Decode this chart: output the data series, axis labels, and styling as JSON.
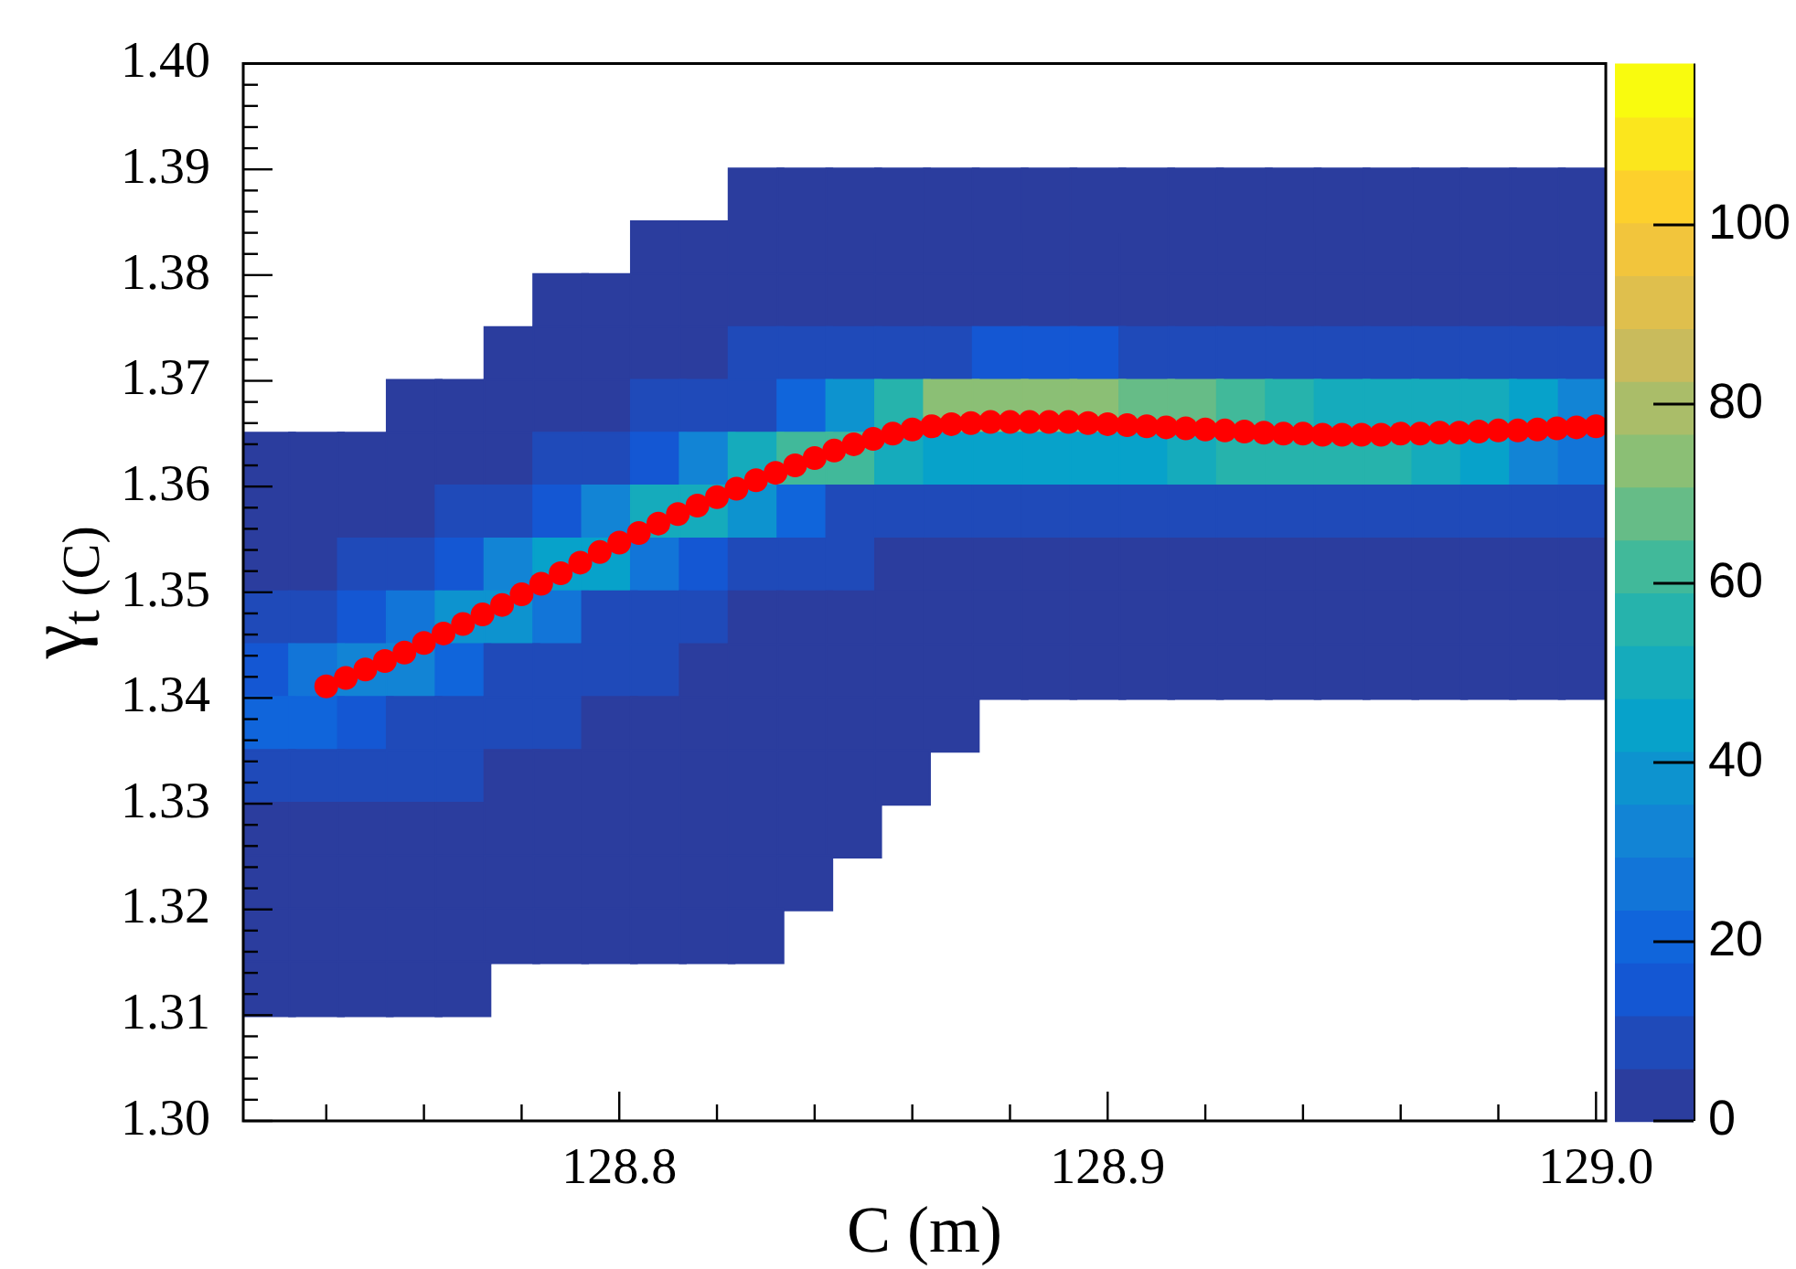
{
  "chart_data": {
    "type": "scatter",
    "xlabel": "C (m)",
    "ylabel": "γ$_{t (C)}$",
    "clim": [
      0,
      118
    ],
    "cticks": [
      0,
      20,
      40,
      60,
      80,
      100
    ],
    "xlim": [
      128.723,
      129.002
    ],
    "xticks": [
      {
        "value": 128.74,
        "label": null
      },
      {
        "value": 128.76,
        "label": null
      },
      {
        "value": 128.78,
        "label": null
      },
      128.8,
      {
        "value": 128.82,
        "label": null
      },
      {
        "value": 128.84,
        "label": null
      },
      {
        "value": 128.86,
        "label": null
      },
      {
        "value": 128.88,
        "label": null
      },
      128.9,
      {
        "value": 128.92,
        "label": null
      },
      {
        "value": 128.94,
        "label": null
      },
      {
        "value": 128.96,
        "label": null
      },
      {
        "value": 128.98,
        "label": null
      },
      {
        "value": 129,
        "label": "129.0"
      }
    ],
    "ylim": [
      1.3,
      1.4
    ],
    "yticks": [
      {
        "value": 1.3,
        "label": "1.30"
      },
      {
        "value": 1.302,
        "label": null
      },
      {
        "value": 1.304,
        "label": null
      },
      {
        "value": 1.306,
        "label": null
      },
      {
        "value": 1.308,
        "label": null
      },
      1.31,
      {
        "value": 1.312,
        "label": null
      },
      {
        "value": 1.314,
        "label": null
      },
      {
        "value": 1.316,
        "label": null
      },
      {
        "value": 1.318,
        "label": null
      },
      1.32,
      {
        "value": 1.322,
        "label": null
      },
      {
        "value": 1.324,
        "label": null
      },
      {
        "value": 1.326,
        "label": null
      },
      {
        "value": 1.328,
        "label": null
      },
      1.33,
      {
        "value": 1.332,
        "label": null
      },
      {
        "value": 1.334,
        "label": null
      },
      {
        "value": 1.336,
        "label": null
      },
      {
        "value": 1.338,
        "label": null
      },
      1.34,
      {
        "value": 1.342,
        "label": null
      },
      {
        "value": 1.344,
        "label": null
      },
      {
        "value": 1.346,
        "label": null
      },
      {
        "value": 1.348,
        "label": null
      },
      1.35,
      {
        "value": 1.352,
        "label": null
      },
      {
        "value": 1.354,
        "label": null
      },
      {
        "value": 1.356,
        "label": null
      },
      {
        "value": 1.358,
        "label": null
      },
      1.36,
      {
        "value": 1.362,
        "label": null
      },
      {
        "value": 1.364,
        "label": null
      },
      {
        "value": 1.366,
        "label": null
      },
      {
        "value": 1.368,
        "label": null
      },
      1.37,
      {
        "value": 1.372,
        "label": null
      },
      {
        "value": 1.374,
        "label": null
      },
      {
        "value": 1.376,
        "label": null
      },
      {
        "value": 1.378,
        "label": null
      },
      1.38,
      {
        "value": 1.382,
        "label": null
      },
      {
        "value": 1.384,
        "label": null
      },
      {
        "value": 1.386,
        "label": null
      },
      {
        "value": 1.388,
        "label": null
      },
      1.39,
      {
        "value": 1.392,
        "label": null
      },
      {
        "value": 1.394,
        "label": null
      },
      {
        "value": 1.396,
        "label": null
      },
      {
        "value": 1.398,
        "label": null
      },
      {
        "value": 1.4,
        "label": "1.40"
      }
    ],
    "series": [
      {
        "marker": "square",
        "x": [
          128.828,
          128.838,
          128.848,
          128.858,
          128.868,
          128.878,
          128.888,
          128.898,
          128.908,
          128.918,
          128.928,
          128.938,
          128.948,
          128.958,
          128.968,
          128.978,
          128.988,
          128.998,
          128.808,
          128.818,
          128.828,
          128.838,
          128.848,
          128.858,
          128.868,
          128.878,
          128.888,
          128.898,
          128.908,
          128.918,
          128.928,
          128.938,
          128.948,
          128.958,
          128.968,
          128.978,
          128.988,
          128.998,
          128.788,
          128.798,
          128.808,
          128.818,
          128.828,
          128.838,
          128.848,
          128.858,
          128.868,
          128.878,
          128.888,
          128.898,
          128.908,
          128.918,
          128.928,
          128.938,
          128.948,
          128.958,
          128.968,
          128.978,
          128.988,
          128.998,
          128.778,
          128.788,
          128.798,
          128.808,
          128.818,
          128.828,
          128.838,
          128.848,
          128.858,
          128.868,
          128.878,
          128.888,
          128.898,
          128.908,
          128.918,
          128.928,
          128.938,
          128.948,
          128.958,
          128.968,
          128.978,
          128.988,
          128.998,
          128.758,
          128.768,
          128.778,
          128.788,
          128.798,
          128.808,
          128.818,
          128.828,
          128.838,
          128.848,
          128.858,
          128.868,
          128.878,
          128.888,
          128.898,
          128.908,
          128.918,
          128.928,
          128.938,
          128.948,
          128.958,
          128.968,
          128.978,
          128.988,
          128.998,
          128.728,
          128.738,
          128.748,
          128.758,
          128.768,
          128.778,
          128.788,
          128.798,
          128.808,
          128.818,
          128.828,
          128.838,
          128.848,
          128.858,
          128.868,
          128.878,
          128.888,
          128.898,
          128.908,
          128.918,
          128.928,
          128.938,
          128.948,
          128.958,
          128.968,
          128.978,
          128.988,
          128.998,
          128.728,
          128.738,
          128.748,
          128.758,
          128.768,
          128.778,
          128.788,
          128.798,
          128.808,
          128.818,
          128.828,
          128.838,
          128.848,
          128.858,
          128.868,
          128.878,
          128.888,
          128.898,
          128.908,
          128.918,
          128.928,
          128.938,
          128.948,
          128.958,
          128.968,
          128.978,
          128.988,
          128.998,
          128.728,
          128.738,
          128.748,
          128.758,
          128.768,
          128.778,
          128.788,
          128.798,
          128.808,
          128.818,
          128.828,
          128.838,
          128.848,
          128.858,
          128.868,
          128.878,
          128.888,
          128.898,
          128.908,
          128.918,
          128.928,
          128.938,
          128.948,
          128.958,
          128.968,
          128.978,
          128.988,
          128.998,
          128.728,
          128.738,
          128.748,
          128.758,
          128.768,
          128.778,
          128.788,
          128.798,
          128.808,
          128.818,
          128.828,
          128.838,
          128.848,
          128.858,
          128.868,
          128.878,
          128.888,
          128.898,
          128.908,
          128.918,
          128.928,
          128.938,
          128.948,
          128.958,
          128.968,
          128.978,
          128.988,
          128.998,
          128.728,
          128.738,
          128.748,
          128.758,
          128.768,
          128.778,
          128.788,
          128.798,
          128.808,
          128.818,
          128.828,
          128.838,
          128.848,
          128.858,
          128.868,
          128.878,
          128.888,
          128.898,
          128.908,
          128.918,
          128.928,
          128.938,
          128.948,
          128.958,
          128.968,
          128.978,
          128.988,
          128.998,
          128.728,
          128.738,
          128.748,
          128.758,
          128.768,
          128.778,
          128.788,
          128.798,
          128.808,
          128.818,
          128.828,
          128.838,
          128.848,
          128.858,
          128.868,
          128.728,
          128.738,
          128.748,
          128.758,
          128.768,
          128.778,
          128.788,
          128.798,
          128.808,
          128.818,
          128.828,
          128.838,
          128.848,
          128.858,
          128.728,
          128.738,
          128.748,
          128.758,
          128.768,
          128.778,
          128.788,
          128.798,
          128.808,
          128.818,
          128.828,
          128.838,
          128.848,
          128.728,
          128.738,
          128.748,
          128.758,
          128.768,
          128.778,
          128.788,
          128.798,
          128.808,
          128.818,
          128.828,
          128.838,
          128.728,
          128.738,
          128.748,
          128.758,
          128.768,
          128.778,
          128.788,
          128.798,
          128.808,
          128.818,
          128.828,
          128.728,
          128.738,
          128.748,
          128.758,
          128.768
        ],
        "values": [
          1.3875,
          1.3875,
          1.3875,
          1.3875,
          1.3875,
          1.3875,
          1.3875,
          1.3875,
          1.3875,
          1.3875,
          1.3875,
          1.3875,
          1.3875,
          1.3875,
          1.3875,
          1.3875,
          1.3875,
          1.3875,
          1.3825,
          1.3825,
          1.3825,
          1.3825,
          1.3825,
          1.3825,
          1.3825,
          1.3825,
          1.3825,
          1.3825,
          1.3825,
          1.3825,
          1.3825,
          1.3825,
          1.3825,
          1.3825,
          1.3825,
          1.3825,
          1.3825,
          1.3825,
          1.3775,
          1.3775,
          1.3775,
          1.3775,
          1.3775,
          1.3775,
          1.3775,
          1.3775,
          1.3775,
          1.3775,
          1.3775,
          1.3775,
          1.3775,
          1.3775,
          1.3775,
          1.3775,
          1.3775,
          1.3775,
          1.3775,
          1.3775,
          1.3775,
          1.3775,
          1.3725,
          1.3725,
          1.3725,
          1.3725,
          1.3725,
          1.3725,
          1.3725,
          1.3725,
          1.3725,
          1.3725,
          1.3725,
          1.3725,
          1.3725,
          1.3725,
          1.3725,
          1.3725,
          1.3725,
          1.3725,
          1.3725,
          1.3725,
          1.3725,
          1.3725,
          1.3725,
          1.3675,
          1.3675,
          1.3675,
          1.3675,
          1.3675,
          1.3675,
          1.3675,
          1.3675,
          1.3675,
          1.3675,
          1.3675,
          1.3675,
          1.3675,
          1.3675,
          1.3675,
          1.3675,
          1.3675,
          1.3675,
          1.3675,
          1.3675,
          1.3675,
          1.3675,
          1.3675,
          1.3675,
          1.3675,
          1.3625,
          1.3625,
          1.3625,
          1.3625,
          1.3625,
          1.3625,
          1.3625,
          1.3625,
          1.3625,
          1.3625,
          1.3625,
          1.3625,
          1.3625,
          1.3625,
          1.3625,
          1.3625,
          1.3625,
          1.3625,
          1.3625,
          1.3625,
          1.3625,
          1.3625,
          1.3625,
          1.3625,
          1.3625,
          1.3625,
          1.3625,
          1.3625,
          1.3575,
          1.3575,
          1.3575,
          1.3575,
          1.3575,
          1.3575,
          1.3575,
          1.3575,
          1.3575,
          1.3575,
          1.3575,
          1.3575,
          1.3575,
          1.3575,
          1.3575,
          1.3575,
          1.3575,
          1.3575,
          1.3575,
          1.3575,
          1.3575,
          1.3575,
          1.3575,
          1.3575,
          1.3575,
          1.3575,
          1.3575,
          1.3575,
          1.3525,
          1.3525,
          1.3525,
          1.3525,
          1.3525,
          1.3525,
          1.3525,
          1.3525,
          1.3525,
          1.3525,
          1.3525,
          1.3525,
          1.3525,
          1.3525,
          1.3525,
          1.3525,
          1.3525,
          1.3525,
          1.3525,
          1.3525,
          1.3525,
          1.3525,
          1.3525,
          1.3525,
          1.3525,
          1.3525,
          1.3525,
          1.3525,
          1.3475,
          1.3475,
          1.3475,
          1.3475,
          1.3475,
          1.3475,
          1.3475,
          1.3475,
          1.3475,
          1.3475,
          1.3475,
          1.3475,
          1.3475,
          1.3475,
          1.3475,
          1.3475,
          1.3475,
          1.3475,
          1.3475,
          1.3475,
          1.3475,
          1.3475,
          1.3475,
          1.3475,
          1.3475,
          1.3475,
          1.3475,
          1.3475,
          1.3425,
          1.3425,
          1.3425,
          1.3425,
          1.3425,
          1.3425,
          1.3425,
          1.3425,
          1.3425,
          1.3425,
          1.3425,
          1.3425,
          1.3425,
          1.3425,
          1.3425,
          1.3425,
          1.3425,
          1.3425,
          1.3425,
          1.3425,
          1.3425,
          1.3425,
          1.3425,
          1.3425,
          1.3425,
          1.3425,
          1.3425,
          1.3425,
          1.3375,
          1.3375,
          1.3375,
          1.3375,
          1.3375,
          1.3375,
          1.3375,
          1.3375,
          1.3375,
          1.3375,
          1.3375,
          1.3375,
          1.3375,
          1.3375,
          1.3375,
          1.3325,
          1.3325,
          1.3325,
          1.3325,
          1.3325,
          1.3325,
          1.3325,
          1.3325,
          1.3325,
          1.3325,
          1.3325,
          1.3325,
          1.3325,
          1.3325,
          1.3275,
          1.3275,
          1.3275,
          1.3275,
          1.3275,
          1.3275,
          1.3275,
          1.3275,
          1.3275,
          1.3275,
          1.3275,
          1.3275,
          1.3275,
          1.3225,
          1.3225,
          1.3225,
          1.3225,
          1.3225,
          1.3225,
          1.3225,
          1.3225,
          1.3225,
          1.3225,
          1.3225,
          1.3225,
          1.3175,
          1.3175,
          1.3175,
          1.3175,
          1.3175,
          1.3175,
          1.3175,
          1.3175,
          1.3175,
          1.3175,
          1.3175,
          1.3125,
          1.3125,
          1.3125,
          1.3125,
          1.3125
        ],
        "cvalues": [
          1,
          1,
          1,
          1,
          1,
          1,
          1,
          1,
          1,
          1,
          1,
          1,
          1,
          1,
          1,
          1,
          1,
          1,
          1,
          2,
          2,
          3,
          3,
          3,
          3,
          2,
          2,
          2,
          2,
          2,
          2,
          2,
          2,
          2,
          2,
          2,
          2,
          2,
          1,
          2,
          3,
          3,
          4,
          5,
          5,
          5,
          5,
          5,
          5,
          5,
          5,
          5,
          5,
          5,
          5,
          5,
          5,
          5,
          5,
          4,
          1,
          3,
          3,
          5,
          5,
          6,
          7,
          8,
          8,
          11,
          12,
          12,
          12,
          10,
          10,
          9,
          9,
          9,
          8,
          8,
          8,
          7,
          6,
          1,
          2,
          3,
          5,
          5,
          7,
          8,
          10,
          20,
          38,
          56,
          72,
          76,
          76,
          74,
          68,
          65,
          60,
          57,
          53,
          51,
          52,
          50,
          44,
          32,
          1,
          1,
          2,
          3,
          4,
          5,
          7,
          7,
          14,
          30,
          50,
          63,
          61,
          50,
          42,
          42,
          42,
          44,
          47,
          50,
          54,
          57,
          57,
          56,
          49,
          44,
          35,
          24,
          2,
          3,
          3,
          4,
          6,
          8,
          16,
          33,
          50,
          53,
          38,
          22,
          11,
          7,
          8,
          8,
          8,
          8,
          9,
          9,
          10,
          10,
          10,
          9,
          9,
          8,
          7,
          6,
          4,
          4,
          6,
          8,
          16,
          30,
          43,
          43,
          28,
          13,
          7,
          7,
          6,
          5,
          5,
          5,
          5,
          5,
          5,
          5,
          5,
          5,
          5,
          5,
          5,
          5,
          5,
          4,
          6,
          9,
          16,
          28,
          38,
          36,
          24,
          10,
          8,
          7,
          5,
          5,
          4,
          4,
          3,
          3,
          3,
          3,
          3,
          3,
          3,
          3,
          3,
          3,
          3,
          3,
          3,
          3,
          16,
          24,
          30,
          30,
          21,
          11,
          8,
          6,
          6,
          5,
          4,
          3,
          3,
          2,
          2,
          1,
          1,
          1,
          1,
          1,
          1,
          1,
          1,
          1,
          1,
          1,
          1,
          1,
          20,
          20,
          14,
          10,
          8,
          7,
          6,
          5,
          4,
          4,
          3,
          2,
          2,
          1,
          1,
          10,
          7,
          7,
          6,
          6,
          5,
          5,
          4,
          3,
          3,
          2,
          2,
          1,
          1,
          5,
          5,
          5,
          5,
          5,
          4,
          3,
          3,
          2,
          2,
          2,
          1,
          1,
          3,
          3,
          4,
          4,
          3,
          3,
          2,
          2,
          2,
          1,
          1,
          1,
          2,
          2,
          3,
          2,
          2,
          2,
          2,
          1,
          1,
          1,
          1,
          1,
          1,
          1,
          1,
          1
        ],
        "colors": [
          "#2b3d9e",
          "#2b3d9e",
          "#2b3d9e",
          "#2b3d9e",
          "#2b3d9e",
          "#2b3d9e",
          "#2b3d9e",
          "#2b3d9e",
          "#2b3d9e",
          "#2b3d9e",
          "#2b3d9e",
          "#2b3d9e",
          "#2b3d9e",
          "#2b3d9e",
          "#2b3d9e",
          "#2b3d9e",
          "#2b3d9e",
          "#2b3d9e",
          "#2b3d9e",
          "#2b3d9e",
          "#2b3d9e",
          "#2b3d9e",
          "#2b3d9e",
          "#2b3d9e",
          "#2b3d9e",
          "#2b3d9e",
          "#2b3d9e",
          "#2b3d9e",
          "#2b3d9e",
          "#2b3d9e",
          "#2b3d9e",
          "#2b3d9e",
          "#2b3d9e",
          "#2b3d9e",
          "#2b3d9e",
          "#2b3d9e",
          "#2b3d9e",
          "#2b3d9e",
          "#2b3d9e",
          "#2b3d9e",
          "#2b3d9e",
          "#2b3d9e",
          "#2b3d9e",
          "#2b3d9e",
          "#2b3d9e",
          "#2b3d9e",
          "#2b3d9e",
          "#2b3d9e",
          "#2b3d9e",
          "#2b3d9e",
          "#2b3d9e",
          "#2b3d9e",
          "#2b3d9e",
          "#2b3d9e",
          "#2b3d9e",
          "#2b3d9e",
          "#2b3d9e",
          "#2b3d9e",
          "#2b3d9e",
          "#2b3d9e",
          "#2b3d9e",
          "#2b3d9e",
          "#2b3d9e",
          "#2b3d9e",
          "#2b3d9e",
          "#1f4ab9",
          "#1f4ab9",
          "#1f4ab9",
          "#1f4ab9",
          "#1f4ab9",
          "#1457d3",
          "#1457d3",
          "#1457d3",
          "#1f4ab9",
          "#1f4ab9",
          "#1f4ab9",
          "#1f4ab9",
          "#1f4ab9",
          "#1f4ab9",
          "#1f4ab9",
          "#1f4ab9",
          "#1f4ab9",
          "#1f4ab9",
          "#2b3d9e",
          "#2b3d9e",
          "#2b3d9e",
          "#2b3d9e",
          "#2b3d9e",
          "#1f4ab9",
          "#1f4ab9",
          "#1f4ab9",
          "#1065db",
          "#0d93cf",
          "#26b3ac",
          "#8bbf75",
          "#8bbf75",
          "#8bbf75",
          "#8bbf75",
          "#66bc87",
          "#66bc87",
          "#41b99a",
          "#26b3ac",
          "#15abbc",
          "#15abbc",
          "#15abbc",
          "#15abbc",
          "#07a2ca",
          "#1284d5",
          "#2b3d9e",
          "#2b3d9e",
          "#2b3d9e",
          "#2b3d9e",
          "#2b3d9e",
          "#2b3d9e",
          "#1f4ab9",
          "#1f4ab9",
          "#1457d3",
          "#1284d5",
          "#15abbc",
          "#41b99a",
          "#41b99a",
          "#15abbc",
          "#07a2ca",
          "#07a2ca",
          "#07a2ca",
          "#07a2ca",
          "#07a2ca",
          "#15abbc",
          "#26b3ac",
          "#26b3ac",
          "#26b3ac",
          "#26b3ac",
          "#15abbc",
          "#07a2ca",
          "#1284d5",
          "#1275d8",
          "#2b3d9e",
          "#2b3d9e",
          "#2b3d9e",
          "#2b3d9e",
          "#1f4ab9",
          "#1f4ab9",
          "#1457d3",
          "#1284d5",
          "#15abbc",
          "#15abbc",
          "#0d93cf",
          "#1065db",
          "#1f4ab9",
          "#1f4ab9",
          "#1f4ab9",
          "#1f4ab9",
          "#1f4ab9",
          "#1f4ab9",
          "#1f4ab9",
          "#1f4ab9",
          "#1f4ab9",
          "#1f4ab9",
          "#1f4ab9",
          "#1f4ab9",
          "#1f4ab9",
          "#1f4ab9",
          "#1f4ab9",
          "#1f4ab9",
          "#2b3d9e",
          "#2b3d9e",
          "#1f4ab9",
          "#1f4ab9",
          "#1457d3",
          "#1284d5",
          "#07a2ca",
          "#07a2ca",
          "#1275d8",
          "#1457d3",
          "#1f4ab9",
          "#1f4ab9",
          "#1f4ab9",
          "#2b3d9e",
          "#2b3d9e",
          "#2b3d9e",
          "#2b3d9e",
          "#2b3d9e",
          "#2b3d9e",
          "#2b3d9e",
          "#2b3d9e",
          "#2b3d9e",
          "#2b3d9e",
          "#2b3d9e",
          "#2b3d9e",
          "#2b3d9e",
          "#2b3d9e",
          "#2b3d9e",
          "#1f4ab9",
          "#1f4ab9",
          "#1457d3",
          "#1275d8",
          "#0d93cf",
          "#0d93cf",
          "#1275d8",
          "#1f4ab9",
          "#1f4ab9",
          "#1f4ab9",
          "#2b3d9e",
          "#2b3d9e",
          "#2b3d9e",
          "#2b3d9e",
          "#2b3d9e",
          "#2b3d9e",
          "#2b3d9e",
          "#2b3d9e",
          "#2b3d9e",
          "#2b3d9e",
          "#2b3d9e",
          "#2b3d9e",
          "#2b3d9e",
          "#2b3d9e",
          "#2b3d9e",
          "#2b3d9e",
          "#2b3d9e",
          "#2b3d9e",
          "#1457d3",
          "#1275d8",
          "#1284d5",
          "#1284d5",
          "#1065db",
          "#1f4ab9",
          "#1f4ab9",
          "#1f4ab9",
          "#1f4ab9",
          "#2b3d9e",
          "#2b3d9e",
          "#2b3d9e",
          "#2b3d9e",
          "#2b3d9e",
          "#2b3d9e",
          "#2b3d9e",
          "#2b3d9e",
          "#2b3d9e",
          "#2b3d9e",
          "#2b3d9e",
          "#2b3d9e",
          "#2b3d9e",
          "#2b3d9e",
          "#2b3d9e",
          "#2b3d9e",
          "#2b3d9e",
          "#2b3d9e",
          "#2b3d9e",
          "#1065db",
          "#1065db",
          "#1457d3",
          "#1f4ab9",
          "#1f4ab9",
          "#1f4ab9",
          "#1f4ab9",
          "#2b3d9e",
          "#2b3d9e",
          "#2b3d9e",
          "#2b3d9e",
          "#2b3d9e",
          "#2b3d9e",
          "#2b3d9e",
          "#2b3d9e",
          "#1f4ab9",
          "#1f4ab9",
          "#1f4ab9",
          "#1f4ab9",
          "#1f4ab9",
          "#2b3d9e",
          "#2b3d9e",
          "#2b3d9e",
          "#2b3d9e",
          "#2b3d9e",
          "#2b3d9e",
          "#2b3d9e",
          "#2b3d9e",
          "#2b3d9e",
          "#2b3d9e",
          "#2b3d9e",
          "#2b3d9e",
          "#2b3d9e",
          "#2b3d9e",
          "#2b3d9e",
          "#2b3d9e",
          "#2b3d9e",
          "#2b3d9e",
          "#2b3d9e",
          "#2b3d9e",
          "#2b3d9e",
          "#2b3d9e",
          "#2b3d9e",
          "#2b3d9e",
          "#2b3d9e",
          "#2b3d9e",
          "#2b3d9e",
          "#2b3d9e",
          "#2b3d9e",
          "#2b3d9e",
          "#2b3d9e",
          "#2b3d9e",
          "#2b3d9e",
          "#2b3d9e",
          "#2b3d9e",
          "#2b3d9e",
          "#2b3d9e",
          "#2b3d9e",
          "#2b3d9e",
          "#2b3d9e",
          "#2b3d9e",
          "#2b3d9e",
          "#2b3d9e",
          "#2b3d9e",
          "#2b3d9e",
          "#2b3d9e",
          "#2b3d9e",
          "#2b3d9e",
          "#2b3d9e",
          "#2b3d9e"
        ]
      },
      {
        "color": "#ff0000",
        "marker": "circle",
        "x": [
          128.74,
          128.744,
          128.748,
          128.752,
          128.756,
          128.76,
          128.764,
          128.768,
          128.772,
          128.776,
          128.78,
          128.784,
          128.788,
          128.792,
          128.796,
          128.8,
          128.804,
          128.808,
          128.812,
          128.816,
          128.82,
          128.824,
          128.828,
          128.832,
          128.836,
          128.84,
          128.844,
          128.848,
          128.852,
          128.856,
          128.86,
          128.864,
          128.868,
          128.872,
          128.876,
          128.88,
          128.884,
          128.888,
          128.892,
          128.896,
          128.9,
          128.904,
          128.908,
          128.912,
          128.916,
          128.92,
          128.924,
          128.928,
          128.932,
          128.936,
          128.94,
          128.944,
          128.948,
          128.952,
          128.956,
          128.96,
          128.964,
          128.968,
          128.972,
          128.976,
          128.98,
          128.984,
          128.988,
          128.992,
          128.996,
          129.0
        ],
        "values": [
          1.3411,
          1.3419,
          1.3427,
          1.3435,
          1.3443,
          1.3452,
          1.3461,
          1.347,
          1.3479,
          1.3488,
          1.3498,
          1.3508,
          1.3518,
          1.3528,
          1.3538,
          1.3547,
          1.3556,
          1.3565,
          1.3574,
          1.3582,
          1.359,
          1.3598,
          1.3606,
          1.3613,
          1.362,
          1.3627,
          1.3634,
          1.364,
          1.3645,
          1.365,
          1.3654,
          1.3657,
          1.3659,
          1.366,
          1.3661,
          1.3661,
          1.3661,
          1.3661,
          1.3661,
          1.366,
          1.3659,
          1.3658,
          1.3657,
          1.3656,
          1.3655,
          1.3654,
          1.3653,
          1.3652,
          1.3651,
          1.365,
          1.365,
          1.3649,
          1.3649,
          1.3649,
          1.3649,
          1.365,
          1.365,
          1.3651,
          1.3651,
          1.3652,
          1.3653,
          1.3653,
          1.3654,
          1.3655,
          1.3656,
          1.3657
        ]
      }
    ]
  }
}
